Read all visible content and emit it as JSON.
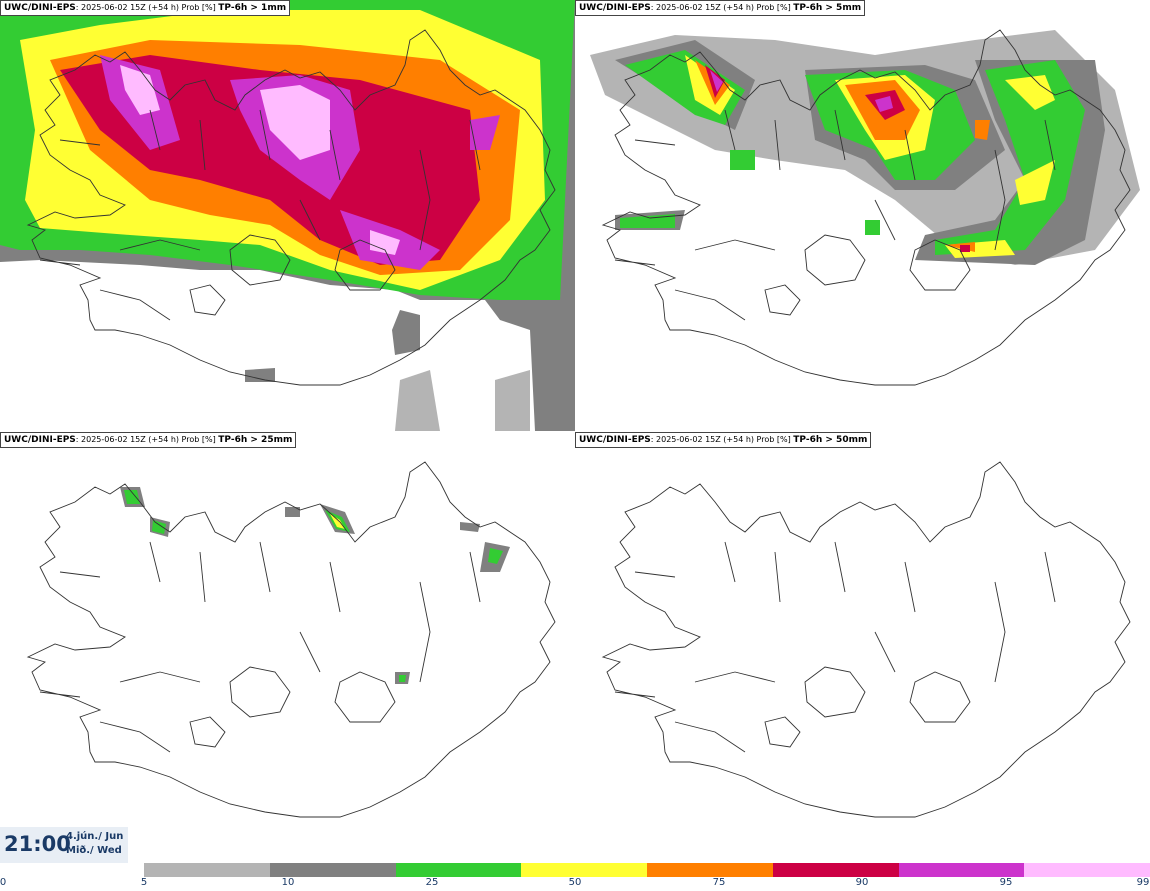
{
  "panels": [
    {
      "model": "UWC/DINI-EPS",
      "meta": ": 2025-06-02 15Z (+54 h) Prob [%]",
      "param": "TP-6h > 1mm"
    },
    {
      "model": "UWC/DINI-EPS",
      "meta": ": 2025-06-02 15Z (+54 h) Prob [%]",
      "param": "TP-6h > 5mm"
    },
    {
      "model": "UWC/DINI-EPS",
      "meta": ": 2025-06-02 15Z (+54 h) Prob [%]",
      "param": "TP-6h > 25mm"
    },
    {
      "model": "UWC/DINI-EPS",
      "meta": ": 2025-06-02 15Z (+54 h) Prob [%]",
      "param": "TP-6h > 50mm"
    }
  ],
  "valid": {
    "time": "21:00",
    "date_line1": "4.jún./ Jun",
    "date_line2": "Mið./ Wed"
  },
  "legend": {
    "ticks": [
      "0",
      "5",
      "10",
      "25",
      "50",
      "75",
      "90",
      "95",
      "99"
    ],
    "colors": [
      "#b4b4b4",
      "#808080",
      "#33cc33",
      "#ffff33",
      "#ff7f00",
      "#cc0044",
      "#cc33cc",
      "#ffbbff"
    ]
  }
}
